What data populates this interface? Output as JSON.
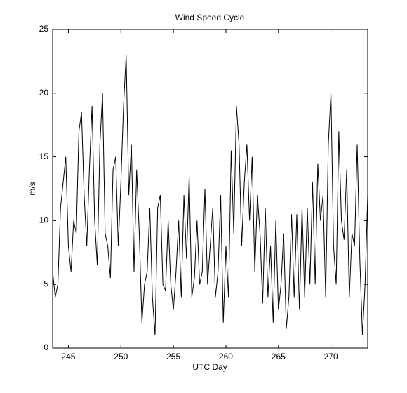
{
  "chart_data": {
    "type": "line",
    "title": "Wind Speed Cycle",
    "xlabel": "UTC Day",
    "ylabel": "m/s",
    "xlim": [
      243.5,
      273.5
    ],
    "ylim": [
      0,
      25
    ],
    "xticks": [
      245,
      250,
      255,
      260,
      265,
      270
    ],
    "yticks": [
      0,
      5,
      10,
      15,
      20,
      25
    ],
    "grid": false,
    "series": [
      {
        "name": null,
        "color": "#000000",
        "x": [
          243.5,
          243.75,
          244,
          244.25,
          244.5,
          244.75,
          245,
          245.25,
          245.5,
          245.75,
          246,
          246.25,
          246.5,
          246.75,
          247,
          247.25,
          247.5,
          247.75,
          248,
          248.25,
          248.5,
          248.75,
          249,
          249.25,
          249.5,
          249.75,
          250,
          250.25,
          250.5,
          250.75,
          251,
          251.25,
          251.5,
          251.75,
          252,
          252.25,
          252.5,
          252.75,
          253,
          253.25,
          253.5,
          253.75,
          254,
          254.25,
          254.5,
          254.75,
          255,
          255.25,
          255.5,
          255.75,
          256,
          256.25,
          256.5,
          256.75,
          257,
          257.25,
          257.5,
          257.75,
          258,
          258.25,
          258.5,
          258.75,
          259,
          259.25,
          259.5,
          259.75,
          260,
          260.25,
          260.5,
          260.75,
          261,
          261.25,
          261.5,
          261.75,
          262,
          262.25,
          262.5,
          262.75,
          263,
          263.25,
          263.5,
          263.75,
          264,
          264.25,
          264.5,
          264.75,
          265,
          265.25,
          265.5,
          265.75,
          266,
          266.25,
          266.5,
          266.75,
          267,
          267.25,
          267.5,
          267.75,
          268,
          268.25,
          268.5,
          268.75,
          269,
          269.25,
          269.5,
          269.75,
          270,
          270.25,
          270.5,
          270.75,
          271,
          271.25,
          271.5,
          271.75,
          272,
          272.25,
          272.5,
          272.75,
          273,
          273.25,
          273.5
        ],
        "values": [
          6,
          4,
          5,
          11,
          13,
          15,
          8,
          6,
          10,
          9,
          17,
          18.5,
          12,
          8,
          14,
          19,
          10,
          6.5,
          16,
          20,
          9,
          8,
          5.5,
          14,
          15,
          8,
          13,
          19,
          23,
          12,
          16,
          6,
          14,
          9,
          2,
          5,
          6,
          11,
          4,
          1,
          11,
          12,
          5,
          4.5,
          10,
          5,
          3,
          6,
          10,
          4,
          12,
          7,
          13.5,
          4,
          5.5,
          10,
          5,
          6,
          12.5,
          5,
          8,
          11,
          4,
          6,
          12,
          2,
          8,
          4,
          15.5,
          9,
          19,
          16,
          8,
          13,
          16,
          10,
          15,
          6,
          12,
          9,
          3.5,
          11,
          4,
          8,
          2,
          10,
          3,
          5,
          9,
          1.5,
          4,
          10.5,
          4,
          10.5,
          3,
          11,
          4,
          11,
          5,
          13,
          5,
          14.5,
          10,
          12,
          4,
          16,
          20,
          8,
          5,
          17,
          10,
          8.5,
          14,
          4,
          9,
          8,
          16,
          7,
          1,
          5,
          12
        ]
      }
    ]
  }
}
